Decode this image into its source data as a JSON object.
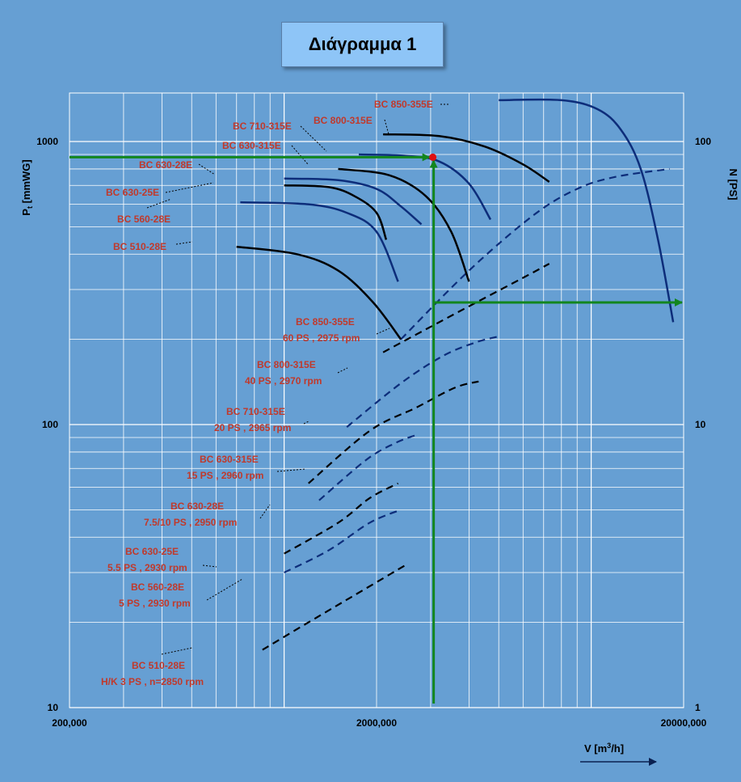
{
  "title": "Διάγραμμα 1",
  "chart_data": {
    "type": "line",
    "xlabel": "V [m³/h]",
    "ylabel_left": "Pt [mmWG]",
    "ylabel_right": "N [PS]",
    "x_scale": "log",
    "y_scale": "log",
    "xlim": [
      200000,
      20000000
    ],
    "ylim_left": [
      10,
      1500
    ],
    "ylim_right": [
      1,
      150
    ],
    "x_ticks": [
      {
        "value": 200000,
        "label": "200,000"
      },
      {
        "value": 2000000,
        "label": "2000,000"
      },
      {
        "value": 20000000,
        "label": "20000,000"
      }
    ],
    "y_ticks_left": [
      {
        "value": 10,
        "label": "10"
      },
      {
        "value": 100,
        "label": "100"
      },
      {
        "value": 1000,
        "label": "1000"
      }
    ],
    "y_ticks_right": [
      {
        "value": 1,
        "label": "1"
      },
      {
        "value": 10,
        "label": "10"
      },
      {
        "value": 100,
        "label": "100"
      }
    ],
    "grid": true,
    "pressure_series": [
      {
        "name": "BC 850-355E",
        "color": "#0D2D7A",
        "dash": false,
        "points": [
          [
            5000000,
            1400
          ],
          [
            8000000,
            1400
          ],
          [
            10500000,
            1300
          ],
          [
            12500000,
            1100
          ],
          [
            14500000,
            800
          ],
          [
            16500000,
            450
          ],
          [
            18500000,
            230
          ]
        ]
      },
      {
        "name": "BC 800-315E",
        "color": "#000000",
        "dash": false,
        "points": [
          [
            2100000,
            1060
          ],
          [
            3200000,
            1045
          ],
          [
            4500000,
            960
          ],
          [
            6000000,
            830
          ],
          [
            7300000,
            720
          ]
        ]
      },
      {
        "name": "BC 710-315E",
        "color": "#0D2D7A",
        "dash": false,
        "points": [
          [
            1750000,
            900
          ],
          [
            2500000,
            890
          ],
          [
            3200000,
            850
          ],
          [
            4000000,
            710
          ],
          [
            4700000,
            530
          ]
        ]
      },
      {
        "name": "BC 630-315E",
        "color": "#000000",
        "dash": false,
        "points": [
          [
            1500000,
            800
          ],
          [
            2200000,
            760
          ],
          [
            2900000,
            640
          ],
          [
            3500000,
            480
          ],
          [
            4000000,
            320
          ]
        ]
      },
      {
        "name": "BC 630-28E",
        "color": "#0D2D7A",
        "dash": false,
        "points": [
          [
            1000000,
            740
          ],
          [
            1500000,
            730
          ],
          [
            2000000,
            680
          ],
          [
            2400000,
            590
          ],
          [
            2800000,
            510
          ]
        ]
      },
      {
        "name": "BC 630-25E",
        "color": "#000000",
        "dash": false,
        "points": [
          [
            1000000,
            700
          ],
          [
            1400000,
            690
          ],
          [
            1700000,
            640
          ],
          [
            2000000,
            560
          ],
          [
            2150000,
            450
          ]
        ]
      },
      {
        "name": "BC 560-28E",
        "color": "#0D2D7A",
        "dash": false,
        "points": [
          [
            720000,
            610
          ],
          [
            1200000,
            600
          ],
          [
            1600000,
            560
          ],
          [
            2000000,
            480
          ],
          [
            2350000,
            320
          ]
        ]
      },
      {
        "name": "BC 510-28E",
        "color": "#000000",
        "dash": false,
        "points": [
          [
            700000,
            425
          ],
          [
            1100000,
            400
          ],
          [
            1500000,
            350
          ],
          [
            1950000,
            270
          ],
          [
            2400000,
            200
          ]
        ]
      }
    ],
    "power_series": [
      {
        "name": "BC 850-355E",
        "color": "#0D2D7A",
        "points": [
          [
            2400000,
            20
          ],
          [
            4000000,
            35
          ],
          [
            6500000,
            55
          ],
          [
            9000000,
            68
          ],
          [
            12000000,
            75
          ],
          [
            18000000,
            80
          ]
        ]
      },
      {
        "name": "BC 800-315E",
        "color": "#000000",
        "points": [
          [
            2100000,
            18
          ],
          [
            3200000,
            23
          ],
          [
            4500000,
            28
          ],
          [
            6000000,
            33
          ],
          [
            7300000,
            37
          ]
        ]
      },
      {
        "name": "BC 710-315E",
        "color": "#0D2D7A",
        "points": [
          [
            1600000,
            9.8
          ],
          [
            2400000,
            14
          ],
          [
            3300000,
            17.5
          ],
          [
            4200000,
            19.5
          ],
          [
            5000000,
            20.5
          ]
        ]
      },
      {
        "name": "BC 630-315E",
        "color": "#000000",
        "points": [
          [
            1200000,
            6.2
          ],
          [
            1900000,
            9.5
          ],
          [
            2700000,
            11.5
          ],
          [
            3600000,
            13.5
          ],
          [
            4300000,
            14.2
          ]
        ]
      },
      {
        "name": "BC 630-28E",
        "color": "#0D2D7A",
        "points": [
          [
            1300000,
            5.4
          ],
          [
            1850000,
            7.5
          ],
          [
            2300000,
            8.6
          ],
          [
            2700000,
            9.2
          ]
        ]
      },
      {
        "name": "BC 630-25E",
        "color": "#000000",
        "points": [
          [
            1000000,
            3.5
          ],
          [
            1500000,
            4.5
          ],
          [
            1900000,
            5.5
          ],
          [
            2350000,
            6.2
          ]
        ]
      },
      {
        "name": "BC 560-28E",
        "color": "#0D2D7A",
        "points": [
          [
            1000000,
            3.0
          ],
          [
            1400000,
            3.6
          ],
          [
            1900000,
            4.5
          ],
          [
            2400000,
            5.0
          ]
        ]
      },
      {
        "name": "BC 510-28E",
        "color": "#000000",
        "points": [
          [
            850000,
            1.6
          ],
          [
            1200000,
            2.0
          ],
          [
            1700000,
            2.5
          ],
          [
            2500000,
            3.2
          ]
        ]
      }
    ],
    "pressure_labels": [
      "BC 850-355E",
      "BC 800-315E",
      "BC 710-315E",
      "BC 630-315E",
      "BC 630-28E",
      "BC 630-25E",
      "BC 560-28E",
      "BC 510-28E"
    ],
    "power_labels": [
      {
        "line1": "BC 850-355E",
        "line2": "60 PS , 2975 rpm"
      },
      {
        "line1": "BC 800-315E",
        "line2": "40 PS , 2970 rpm"
      },
      {
        "line1": "BC 710-315E",
        "line2": "20 PS , 2965 rpm"
      },
      {
        "line1": "BC 630-315E",
        "line2": "15 PS , 2960 rpm"
      },
      {
        "line1": "BC 630-28E",
        "line2": "7.5/10 PS , 2950 rpm"
      },
      {
        "line1": "BC 630-25E",
        "line2": "5.5 PS , 2930 rpm"
      },
      {
        "line1": "BC 560-28E",
        "line2": "5 PS , 2930 rpm"
      },
      {
        "line1": "BC 510-28E",
        "line2": "H/K 3 PS , n=2850 rpm"
      }
    ],
    "operating_point": {
      "V": 3050000,
      "Pt": 880,
      "N": 27
    },
    "guide_color": "#12861E",
    "point_color": "#E01010"
  }
}
